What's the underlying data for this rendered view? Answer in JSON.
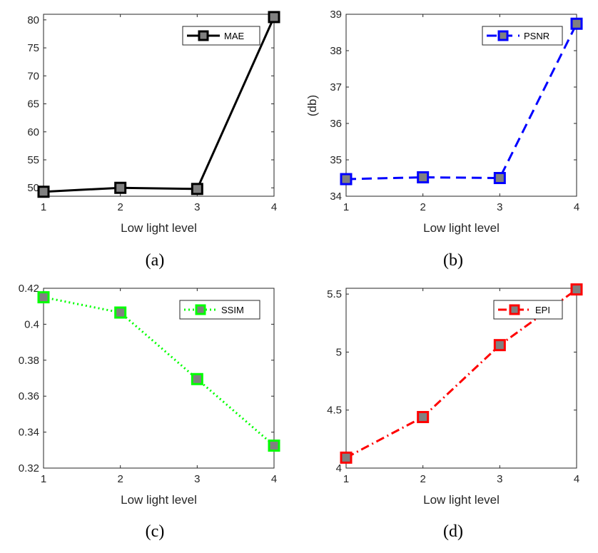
{
  "chart_data": [
    {
      "type": "line",
      "caption": "(a)",
      "xlabel": "Low light level",
      "ylabel": "",
      "x": [
        1,
        2,
        3,
        4
      ],
      "xticks": [
        "1",
        "2",
        "3",
        "4"
      ],
      "xlim": [
        1,
        4
      ],
      "ylim": [
        48.5,
        81
      ],
      "yticks": [
        50,
        55,
        60,
        65,
        70,
        75,
        80
      ],
      "grid": false,
      "legend_position": "top-right",
      "series": [
        {
          "name": "MAE",
          "values": [
            49.3,
            50.0,
            49.8,
            80.5
          ],
          "color": "#000000",
          "line_style": "solid",
          "marker": "square",
          "marker_face": "#808080"
        }
      ]
    },
    {
      "type": "line",
      "caption": "(b)",
      "xlabel": "Low light level",
      "ylabel": "(db)",
      "x": [
        1,
        2,
        3,
        4
      ],
      "xticks": [
        "1",
        "2",
        "3",
        "4"
      ],
      "xlim": [
        1,
        4
      ],
      "ylim": [
        34,
        39
      ],
      "yticks": [
        34,
        35,
        36,
        37,
        38,
        39
      ],
      "grid": false,
      "legend_position": "top-right",
      "series": [
        {
          "name": "PSNR",
          "values": [
            34.47,
            34.52,
            34.5,
            38.74
          ],
          "color": "#0000ff",
          "line_style": "dashed",
          "marker": "square",
          "marker_face": "#808080"
        }
      ]
    },
    {
      "type": "line",
      "caption": "(c)",
      "xlabel": "Low light level",
      "ylabel": "",
      "x": [
        1,
        2,
        3,
        4
      ],
      "xticks": [
        "1",
        "2",
        "3",
        "4"
      ],
      "xlim": [
        1,
        4
      ],
      "ylim": [
        0.32,
        0.42
      ],
      "yticks": [
        0.32,
        0.34,
        0.36,
        0.38,
        0.4,
        0.42
      ],
      "grid": false,
      "legend_position": "top-right",
      "series": [
        {
          "name": "SSIM",
          "values": [
            0.415,
            0.4065,
            0.3695,
            0.3325
          ],
          "color": "#00ff00",
          "line_style": "dotted",
          "marker": "square",
          "marker_face": "#808080"
        }
      ]
    },
    {
      "type": "line",
      "caption": "(d)",
      "xlabel": "Low light level",
      "ylabel": "",
      "x": [
        1,
        2,
        3,
        4
      ],
      "xticks": [
        "1",
        "2",
        "3",
        "4"
      ],
      "xlim": [
        1,
        4
      ],
      "ylim": [
        4,
        5.55
      ],
      "yticks": [
        4,
        4.5,
        5,
        5.5
      ],
      "grid": false,
      "legend_position": "top-right",
      "series": [
        {
          "name": "EPI",
          "values": [
            4.09,
            4.44,
            5.06,
            5.54
          ],
          "color": "#ff0000",
          "line_style": "dashdot",
          "marker": "square",
          "marker_face": "#808080"
        }
      ]
    }
  ]
}
